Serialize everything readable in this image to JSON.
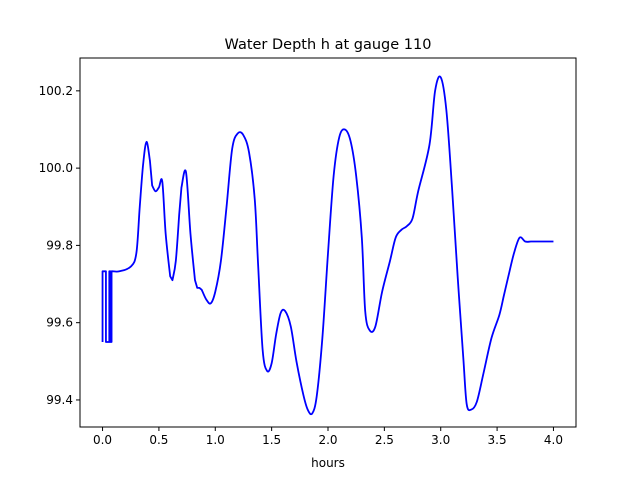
{
  "chart_data": {
    "type": "line",
    "title": "Water Depth h at gauge 110",
    "xlabel": "hours",
    "ylabel": "",
    "xlim": [
      -0.2,
      4.2
    ],
    "ylim": [
      99.33,
      100.285
    ],
    "xticks": [
      0.0,
      0.5,
      1.0,
      1.5,
      2.0,
      2.5,
      3.0,
      3.5,
      4.0
    ],
    "xtick_labels": [
      "0.0",
      "0.5",
      "1.0",
      "1.5",
      "2.0",
      "2.5",
      "3.0",
      "3.5",
      "4.0"
    ],
    "yticks": [
      99.4,
      99.6,
      99.8,
      100.0,
      100.2
    ],
    "ytick_labels": [
      "99.4",
      "99.6",
      "99.8",
      "100.0",
      "100.2"
    ],
    "grid": false,
    "legend": "none",
    "series": [
      {
        "color": "#0000ff",
        "x": [
          0.0,
          0.0,
          0.02,
          0.03,
          0.03,
          0.06,
          0.06,
          0.07,
          0.07,
          0.08,
          0.08,
          0.09,
          0.09,
          0.15,
          0.25,
          0.3,
          0.33,
          0.36,
          0.39,
          0.42,
          0.44,
          0.47,
          0.5,
          0.53,
          0.56,
          0.6,
          0.62,
          0.65,
          0.68,
          0.7,
          0.74,
          0.78,
          0.82,
          0.84,
          0.86,
          0.88,
          0.92,
          0.96,
          1.0,
          1.05,
          1.1,
          1.15,
          1.2,
          1.25,
          1.3,
          1.35,
          1.38,
          1.42,
          1.46,
          1.5,
          1.54,
          1.58,
          1.62,
          1.67,
          1.72,
          1.78,
          1.82,
          1.86,
          1.9,
          1.95,
          2.0,
          2.05,
          2.1,
          2.15,
          2.2,
          2.25,
          2.3,
          2.33,
          2.37,
          2.42,
          2.48,
          2.55,
          2.6,
          2.65,
          2.7,
          2.75,
          2.8,
          2.9,
          2.95,
          3.0,
          3.05,
          3.1,
          3.15,
          3.2,
          3.23,
          3.27,
          3.32,
          3.38,
          3.45,
          3.52,
          3.56,
          3.6,
          3.65,
          3.7,
          3.75,
          3.8,
          3.85,
          3.9,
          3.95,
          3.98,
          4.0
        ],
        "y": [
          99.55,
          99.733,
          99.733,
          99.733,
          99.55,
          99.55,
          99.733,
          99.733,
          99.55,
          99.55,
          99.733,
          99.733,
          99.733,
          99.733,
          99.745,
          99.78,
          99.9,
          100.01,
          100.068,
          100.02,
          99.955,
          99.94,
          99.95,
          99.965,
          99.83,
          99.72,
          99.71,
          99.76,
          99.88,
          99.95,
          99.99,
          99.83,
          99.71,
          99.69,
          99.69,
          99.685,
          99.66,
          99.65,
          99.68,
          99.76,
          99.9,
          100.05,
          100.09,
          100.085,
          100.04,
          99.92,
          99.75,
          99.53,
          99.475,
          99.495,
          99.57,
          99.625,
          99.63,
          99.59,
          99.5,
          99.415,
          99.375,
          99.365,
          99.41,
          99.56,
          99.78,
          99.98,
          100.08,
          100.1,
          100.07,
          99.98,
          99.82,
          99.63,
          99.58,
          99.59,
          99.68,
          99.76,
          99.82,
          99.84,
          99.85,
          99.87,
          99.94,
          100.06,
          100.2,
          100.235,
          100.15,
          99.95,
          99.72,
          99.51,
          99.39,
          99.375,
          99.395,
          99.47,
          99.56,
          99.62,
          99.67,
          99.72,
          99.78,
          99.82,
          99.81,
          99.81,
          99.81,
          99.81,
          99.81,
          99.81,
          99.81
        ]
      }
    ]
  }
}
